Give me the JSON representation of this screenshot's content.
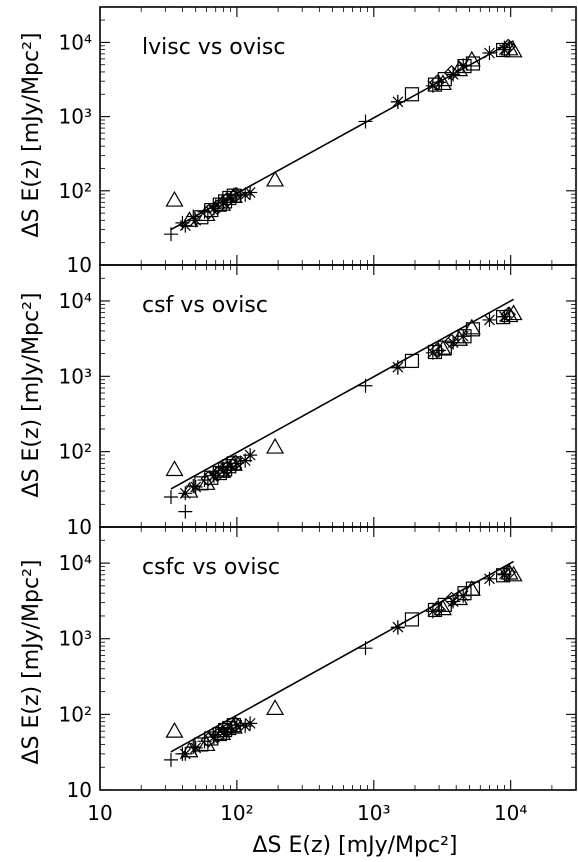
{
  "figure": {
    "ylabel": "ΔS E(z) [mJy/Mpc²]",
    "xlabel": "ΔS E(z) [mJy/Mpc²]"
  },
  "chart_data": [
    {
      "type": "scatter",
      "title": "lvisc vs ovisc",
      "xscale": "log",
      "yscale": "log",
      "xlim": [
        10,
        30000
      ],
      "ylim": [
        10,
        30000
      ],
      "x_ticks": [
        "10",
        "10²",
        "10³",
        "10⁴"
      ],
      "y_ticks": [
        "10",
        "10²",
        "10³",
        "10⁴"
      ],
      "fit_line": {
        "x": [
          33,
          10500
        ],
        "y": [
          30,
          10500
        ]
      },
      "series": [
        {
          "marker": "plus",
          "points": [
            [
              33,
              26
            ],
            [
              40,
              37
            ],
            [
              48,
              45
            ],
            [
              58,
              52
            ],
            [
              70,
              62
            ],
            [
              85,
              75
            ],
            [
              870,
              860
            ],
            [
              1500,
              1580
            ],
            [
              3000,
              2900
            ],
            [
              9000,
              8500
            ]
          ]
        },
        {
          "marker": "triangle",
          "points": [
            [
              35,
              75
            ],
            [
              190,
              140
            ],
            [
              45,
              40
            ],
            [
              60,
              48
            ],
            [
              78,
              66
            ],
            [
              95,
              84
            ],
            [
              3200,
              2800
            ],
            [
              4200,
              4300
            ],
            [
              5200,
              5800
            ],
            [
              9800,
              8200
            ],
            [
              10500,
              7700
            ]
          ]
        },
        {
          "marker": "square",
          "points": [
            [
              55,
              44
            ],
            [
              65,
              55
            ],
            [
              75,
              65
            ],
            [
              82,
              72
            ],
            [
              88,
              80
            ],
            [
              95,
              86
            ],
            [
              1900,
              2000
            ],
            [
              2800,
              2700
            ],
            [
              3300,
              3200
            ],
            [
              4600,
              4800
            ],
            [
              5300,
              5200
            ],
            [
              8800,
              7900
            ]
          ]
        },
        {
          "marker": "asterisk",
          "points": [
            [
              42,
              34
            ],
            [
              50,
              40
            ],
            [
              68,
              58
            ],
            [
              80,
              70
            ],
            [
              90,
              80
            ],
            [
              100,
              90
            ],
            [
              115,
              88
            ],
            [
              125,
              95
            ],
            [
              1500,
              1580
            ],
            [
              2700,
              2600
            ],
            [
              3800,
              3700
            ],
            [
              4500,
              4900
            ],
            [
              7000,
              7200
            ],
            [
              9000,
              8000
            ]
          ]
        },
        {
          "marker": "diamond",
          "points": [
            [
              62,
              52
            ],
            [
              72,
              60
            ],
            [
              85,
              76
            ],
            [
              98,
              88
            ],
            [
              2900,
              2900
            ],
            [
              3700,
              3900
            ],
            [
              9600,
              8800
            ]
          ]
        }
      ]
    },
    {
      "type": "scatter",
      "title": "csf vs ovisc",
      "xscale": "log",
      "yscale": "log",
      "xlim": [
        10,
        30000
      ],
      "ylim": [
        10,
        30000
      ],
      "x_ticks": [
        "10",
        "10²",
        "10³",
        "10⁴"
      ],
      "y_ticks": [
        "10",
        "10²",
        "10³",
        "10⁴"
      ],
      "fit_line": {
        "x": [
          33,
          10500
        ],
        "y": [
          32,
          10500
        ]
      },
      "series": [
        {
          "marker": "plus",
          "points": [
            [
              33,
              25
            ],
            [
              42,
              16
            ],
            [
              48,
              35
            ],
            [
              58,
              42
            ],
            [
              70,
              52
            ],
            [
              85,
              62
            ],
            [
              870,
              750
            ],
            [
              1500,
              1300
            ],
            [
              3000,
              2200
            ],
            [
              9000,
              6200
            ]
          ]
        },
        {
          "marker": "triangle",
          "points": [
            [
              35,
              58
            ],
            [
              190,
              115
            ],
            [
              45,
              30
            ],
            [
              60,
              38
            ],
            [
              78,
              55
            ],
            [
              95,
              68
            ],
            [
              3200,
              2300
            ],
            [
              4200,
              3100
            ],
            [
              5200,
              4400
            ],
            [
              9800,
              6400
            ],
            [
              10500,
              6800
            ]
          ]
        },
        {
          "marker": "square",
          "points": [
            [
              55,
              38
            ],
            [
              65,
              45
            ],
            [
              75,
              52
            ],
            [
              82,
              58
            ],
            [
              88,
              64
            ],
            [
              95,
              70
            ],
            [
              1900,
              1600
            ],
            [
              2800,
              2100
            ],
            [
              3300,
              2400
            ],
            [
              4600,
              3400
            ],
            [
              5300,
              4200
            ],
            [
              8800,
              6100
            ]
          ]
        },
        {
          "marker": "asterisk",
          "points": [
            [
              42,
              28
            ],
            [
              50,
              34
            ],
            [
              68,
              48
            ],
            [
              80,
              56
            ],
            [
              90,
              64
            ],
            [
              100,
              70
            ],
            [
              115,
              76
            ],
            [
              125,
              90
            ],
            [
              1500,
              1320
            ],
            [
              2700,
              2050
            ],
            [
              3800,
              2800
            ],
            [
              4500,
              3400
            ],
            [
              7000,
              5600
            ],
            [
              9000,
              6200
            ]
          ]
        },
        {
          "marker": "diamond",
          "points": [
            [
              62,
              44
            ],
            [
              72,
              50
            ],
            [
              85,
              60
            ],
            [
              98,
              72
            ],
            [
              2900,
              2200
            ],
            [
              3700,
              2900
            ],
            [
              9600,
              6600
            ]
          ]
        }
      ]
    },
    {
      "type": "scatter",
      "title": "csfc vs ovisc",
      "xscale": "log",
      "yscale": "log",
      "xlim": [
        10,
        30000
      ],
      "ylim": [
        10,
        30000
      ],
      "x_ticks": [
        "10",
        "10²",
        "10³",
        "10⁴"
      ],
      "y_ticks": [
        "10",
        "10²",
        "10³",
        "10⁴"
      ],
      "fit_line": {
        "x": [
          33,
          10500
        ],
        "y": [
          32,
          10500
        ]
      },
      "series": [
        {
          "marker": "plus",
          "points": [
            [
              33,
              25
            ],
            [
              40,
              30
            ],
            [
              48,
              37
            ],
            [
              58,
              44
            ],
            [
              70,
              54
            ],
            [
              85,
              64
            ],
            [
              870,
              750
            ],
            [
              1500,
              1400
            ],
            [
              3000,
              2400
            ],
            [
              9000,
              7000
            ]
          ]
        },
        {
          "marker": "triangle",
          "points": [
            [
              35,
              60
            ],
            [
              190,
              120
            ],
            [
              45,
              33
            ],
            [
              60,
              40
            ],
            [
              78,
              56
            ],
            [
              95,
              68
            ],
            [
              3200,
              2500
            ],
            [
              4200,
              3400
            ],
            [
              5200,
              4500
            ],
            [
              9800,
              7400
            ],
            [
              10500,
              7000
            ]
          ]
        },
        {
          "marker": "square",
          "points": [
            [
              55,
              40
            ],
            [
              65,
              48
            ],
            [
              75,
              55
            ],
            [
              82,
              62
            ],
            [
              88,
              66
            ],
            [
              95,
              72
            ],
            [
              1900,
              1800
            ],
            [
              2800,
              2400
            ],
            [
              3300,
              2800
            ],
            [
              4600,
              4000
            ],
            [
              5300,
              4600
            ],
            [
              8800,
              6900
            ]
          ]
        },
        {
          "marker": "asterisk",
          "points": [
            [
              42,
              30
            ],
            [
              50,
              36
            ],
            [
              68,
              50
            ],
            [
              80,
              58
            ],
            [
              90,
              66
            ],
            [
              100,
              72
            ],
            [
              115,
              70
            ],
            [
              125,
              76
            ],
            [
              1500,
              1420
            ],
            [
              2700,
              2300
            ],
            [
              3800,
              3100
            ],
            [
              4500,
              3700
            ],
            [
              7000,
              6200
            ],
            [
              9000,
              7200
            ]
          ]
        },
        {
          "marker": "diamond",
          "points": [
            [
              62,
              46
            ],
            [
              72,
              52
            ],
            [
              85,
              62
            ],
            [
              98,
              74
            ],
            [
              2900,
              2500
            ],
            [
              3700,
              3300
            ],
            [
              9600,
              7500
            ]
          ]
        }
      ]
    }
  ]
}
